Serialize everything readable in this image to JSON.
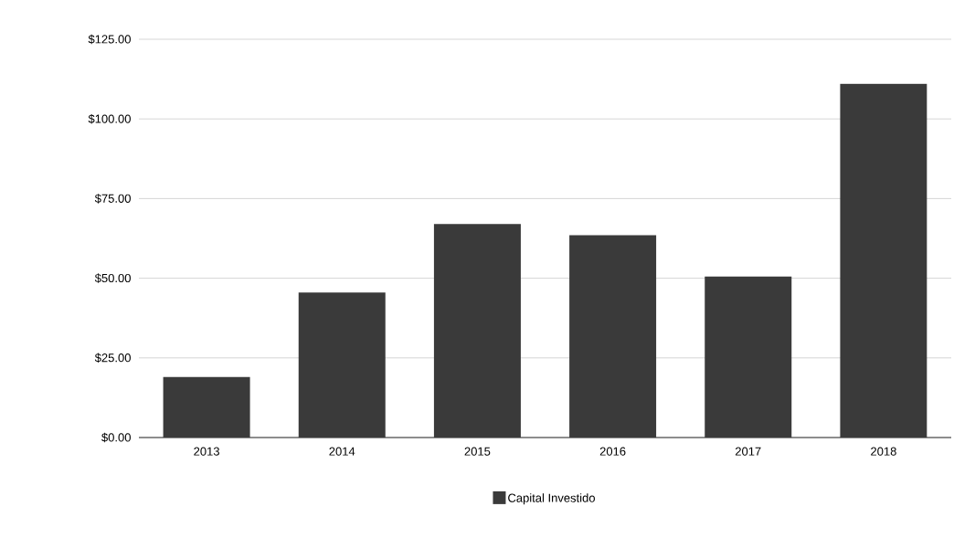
{
  "chart_data": {
    "type": "bar",
    "categories": [
      "2013",
      "2014",
      "2015",
      "2016",
      "2017",
      "2018"
    ],
    "series": [
      {
        "name": "Capital Investido",
        "color": "#3a3a3a",
        "values": [
          19,
          45.5,
          67,
          63.5,
          50.5,
          111
        ]
      }
    ],
    "ylim": [
      0,
      125
    ],
    "yticks": [
      {
        "value": 0,
        "label": "$0.00"
      },
      {
        "value": 25,
        "label": "$25.00"
      },
      {
        "value": 50,
        "label": "$50.00"
      },
      {
        "value": 75,
        "label": "$75.00"
      },
      {
        "value": 100,
        "label": "$100.00"
      },
      {
        "value": 125,
        "label": "$125.00"
      }
    ],
    "grid": "y",
    "legend": "bottom"
  }
}
